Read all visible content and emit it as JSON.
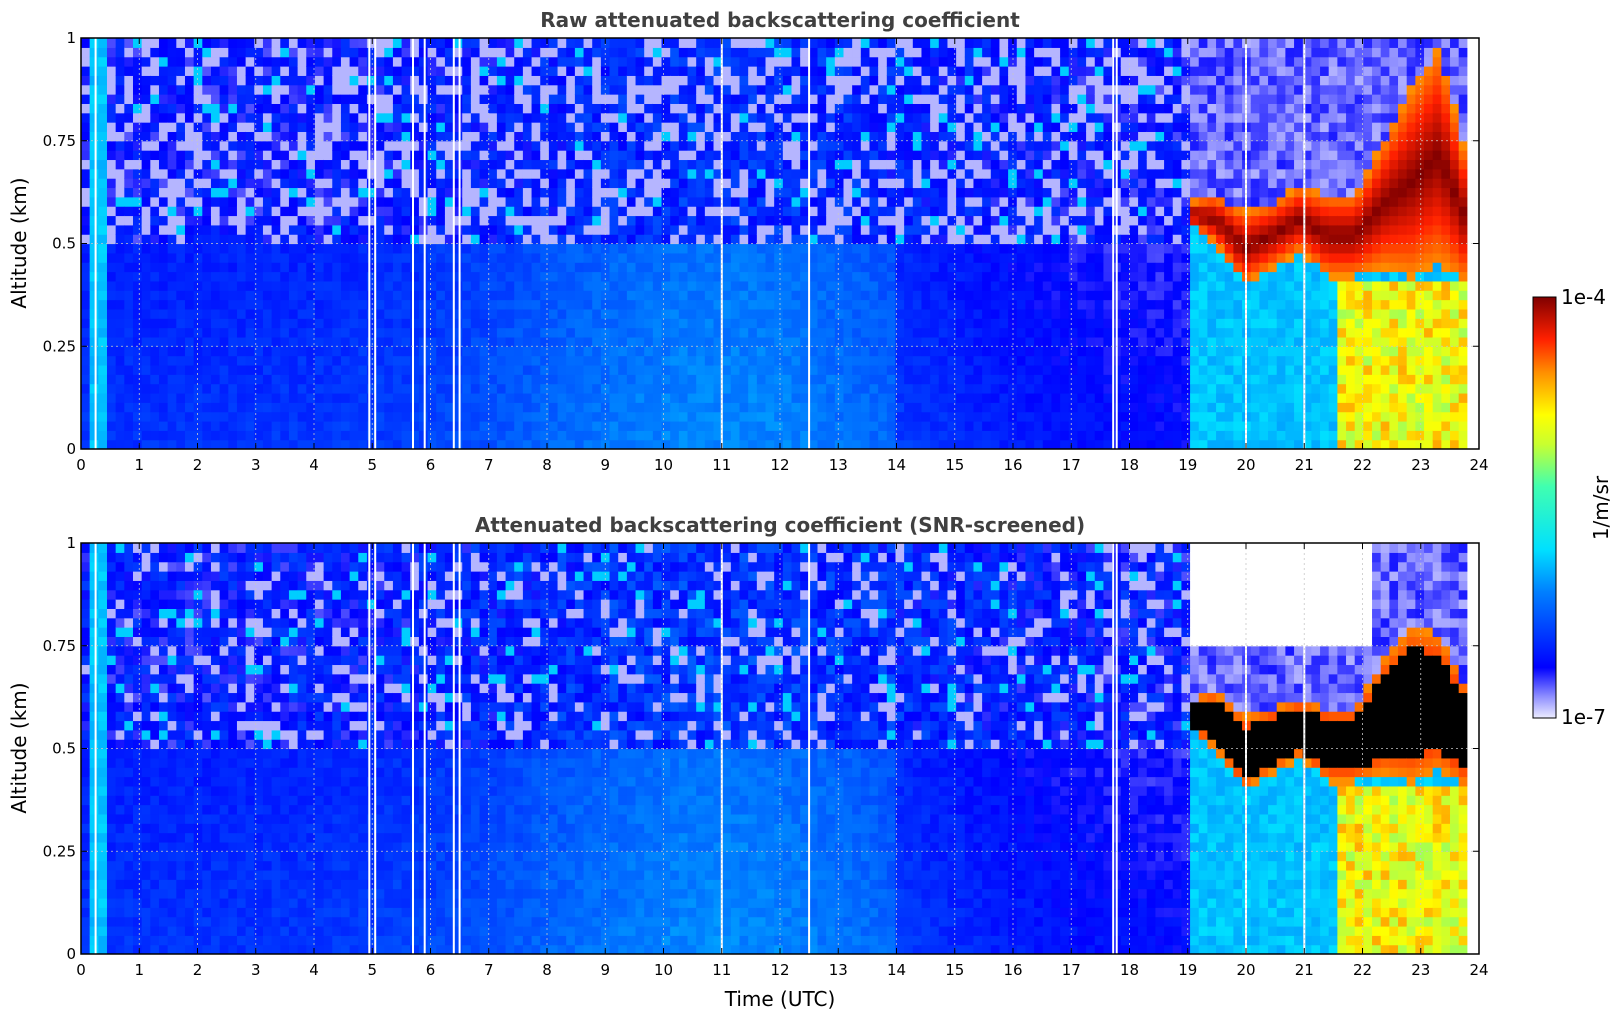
{
  "chart_data": [
    {
      "type": "heatmap",
      "title": "Raw attenuated backscattering coefficient",
      "xlabel": "",
      "ylabel": "Altitude (km)",
      "xlim": [
        0,
        24
      ],
      "ylim": [
        0,
        1
      ],
      "x_ticks": [
        "0",
        "1",
        "2",
        "3",
        "4",
        "5",
        "6",
        "7",
        "8",
        "9",
        "10",
        "11",
        "12",
        "13",
        "14",
        "15",
        "16",
        "17",
        "18",
        "19",
        "20",
        "21",
        "22",
        "23",
        "24"
      ],
      "y_ticks": [
        "0",
        "0.25",
        "0.5",
        "0.75",
        "1"
      ],
      "grid": true,
      "data_end_hour": 23.8,
      "gaps_hours": [
        0.25,
        4.95,
        5.05,
        5.7,
        5.9,
        6.4,
        6.5,
        11.0,
        12.5,
        17.72,
        17.78,
        20.0,
        21.0
      ],
      "features": [
        {
          "kind": "noise-dominated sparse signal",
          "x_range": [
            0,
            19
          ],
          "y_range": [
            0.5,
            1.0
          ]
        },
        {
          "kind": "elevated aerosol layer (high backscatter)",
          "x_range": [
            19,
            23.8
          ],
          "top_km": [
            0.6,
            0.62,
            0.58,
            0.6,
            0.64,
            0.62,
            0.62,
            0.75,
            0.88,
            0.98,
            0.7
          ],
          "base_km": [
            0.55,
            0.5,
            0.4,
            0.44,
            0.48,
            0.42,
            0.42,
            0.44,
            0.42,
            0.45,
            0.4
          ]
        },
        {
          "kind": "near-surface enhanced backscatter",
          "x_range": [
            21.6,
            23.8
          ],
          "y_range": [
            0,
            0.4
          ]
        }
      ]
    },
    {
      "type": "heatmap",
      "title": "Attenuated backscattering coefficient (SNR-screened)",
      "xlabel": "Time (UTC)",
      "ylabel": "Altitude (km)",
      "xlim": [
        0,
        24
      ],
      "ylim": [
        0,
        1
      ],
      "x_ticks": [
        "0",
        "1",
        "2",
        "3",
        "4",
        "5",
        "6",
        "7",
        "8",
        "9",
        "10",
        "11",
        "12",
        "13",
        "14",
        "15",
        "16",
        "17",
        "18",
        "19",
        "20",
        "21",
        "22",
        "23",
        "24"
      ],
      "y_ticks": [
        "0",
        "0.25",
        "0.5",
        "0.75",
        "1"
      ],
      "grid": true,
      "data_end_hour": 23.8,
      "gaps_hours": [
        0.25,
        4.95,
        5.05,
        5.7,
        5.9,
        6.4,
        6.5,
        11.0,
        12.5,
        17.72,
        17.78,
        20.0,
        21.0
      ],
      "features": [
        {
          "kind": "screened-out region (low SNR)",
          "x_range": [
            19,
            22.2
          ],
          "y_range": [
            0.75,
            1.0
          ]
        },
        {
          "kind": "elevated aerosol layer (saturated, black core)",
          "x_range": [
            19,
            23.8
          ],
          "top_km": [
            0.62,
            0.64,
            0.58,
            0.6,
            0.62,
            0.6,
            0.6,
            0.72,
            0.8,
            0.78,
            0.65
          ],
          "base_km": [
            0.55,
            0.5,
            0.4,
            0.44,
            0.48,
            0.42,
            0.42,
            0.44,
            0.42,
            0.45,
            0.4
          ]
        },
        {
          "kind": "near-surface enhanced backscatter",
          "x_range": [
            21.6,
            23.8
          ],
          "y_range": [
            0,
            0.4
          ]
        }
      ]
    }
  ],
  "colorbar": {
    "label": "1/m/sr",
    "max_label": "1e-4",
    "min_label": "1e-7",
    "scale": "log",
    "range": [
      1e-07,
      0.0001
    ],
    "colormap": "jet"
  },
  "colors": {
    "title": "#404040",
    "grid": "#c8c8c8",
    "background_blue": "#0a2ee6",
    "layer_red": "#8b0000",
    "saturated_black": "#000000"
  }
}
